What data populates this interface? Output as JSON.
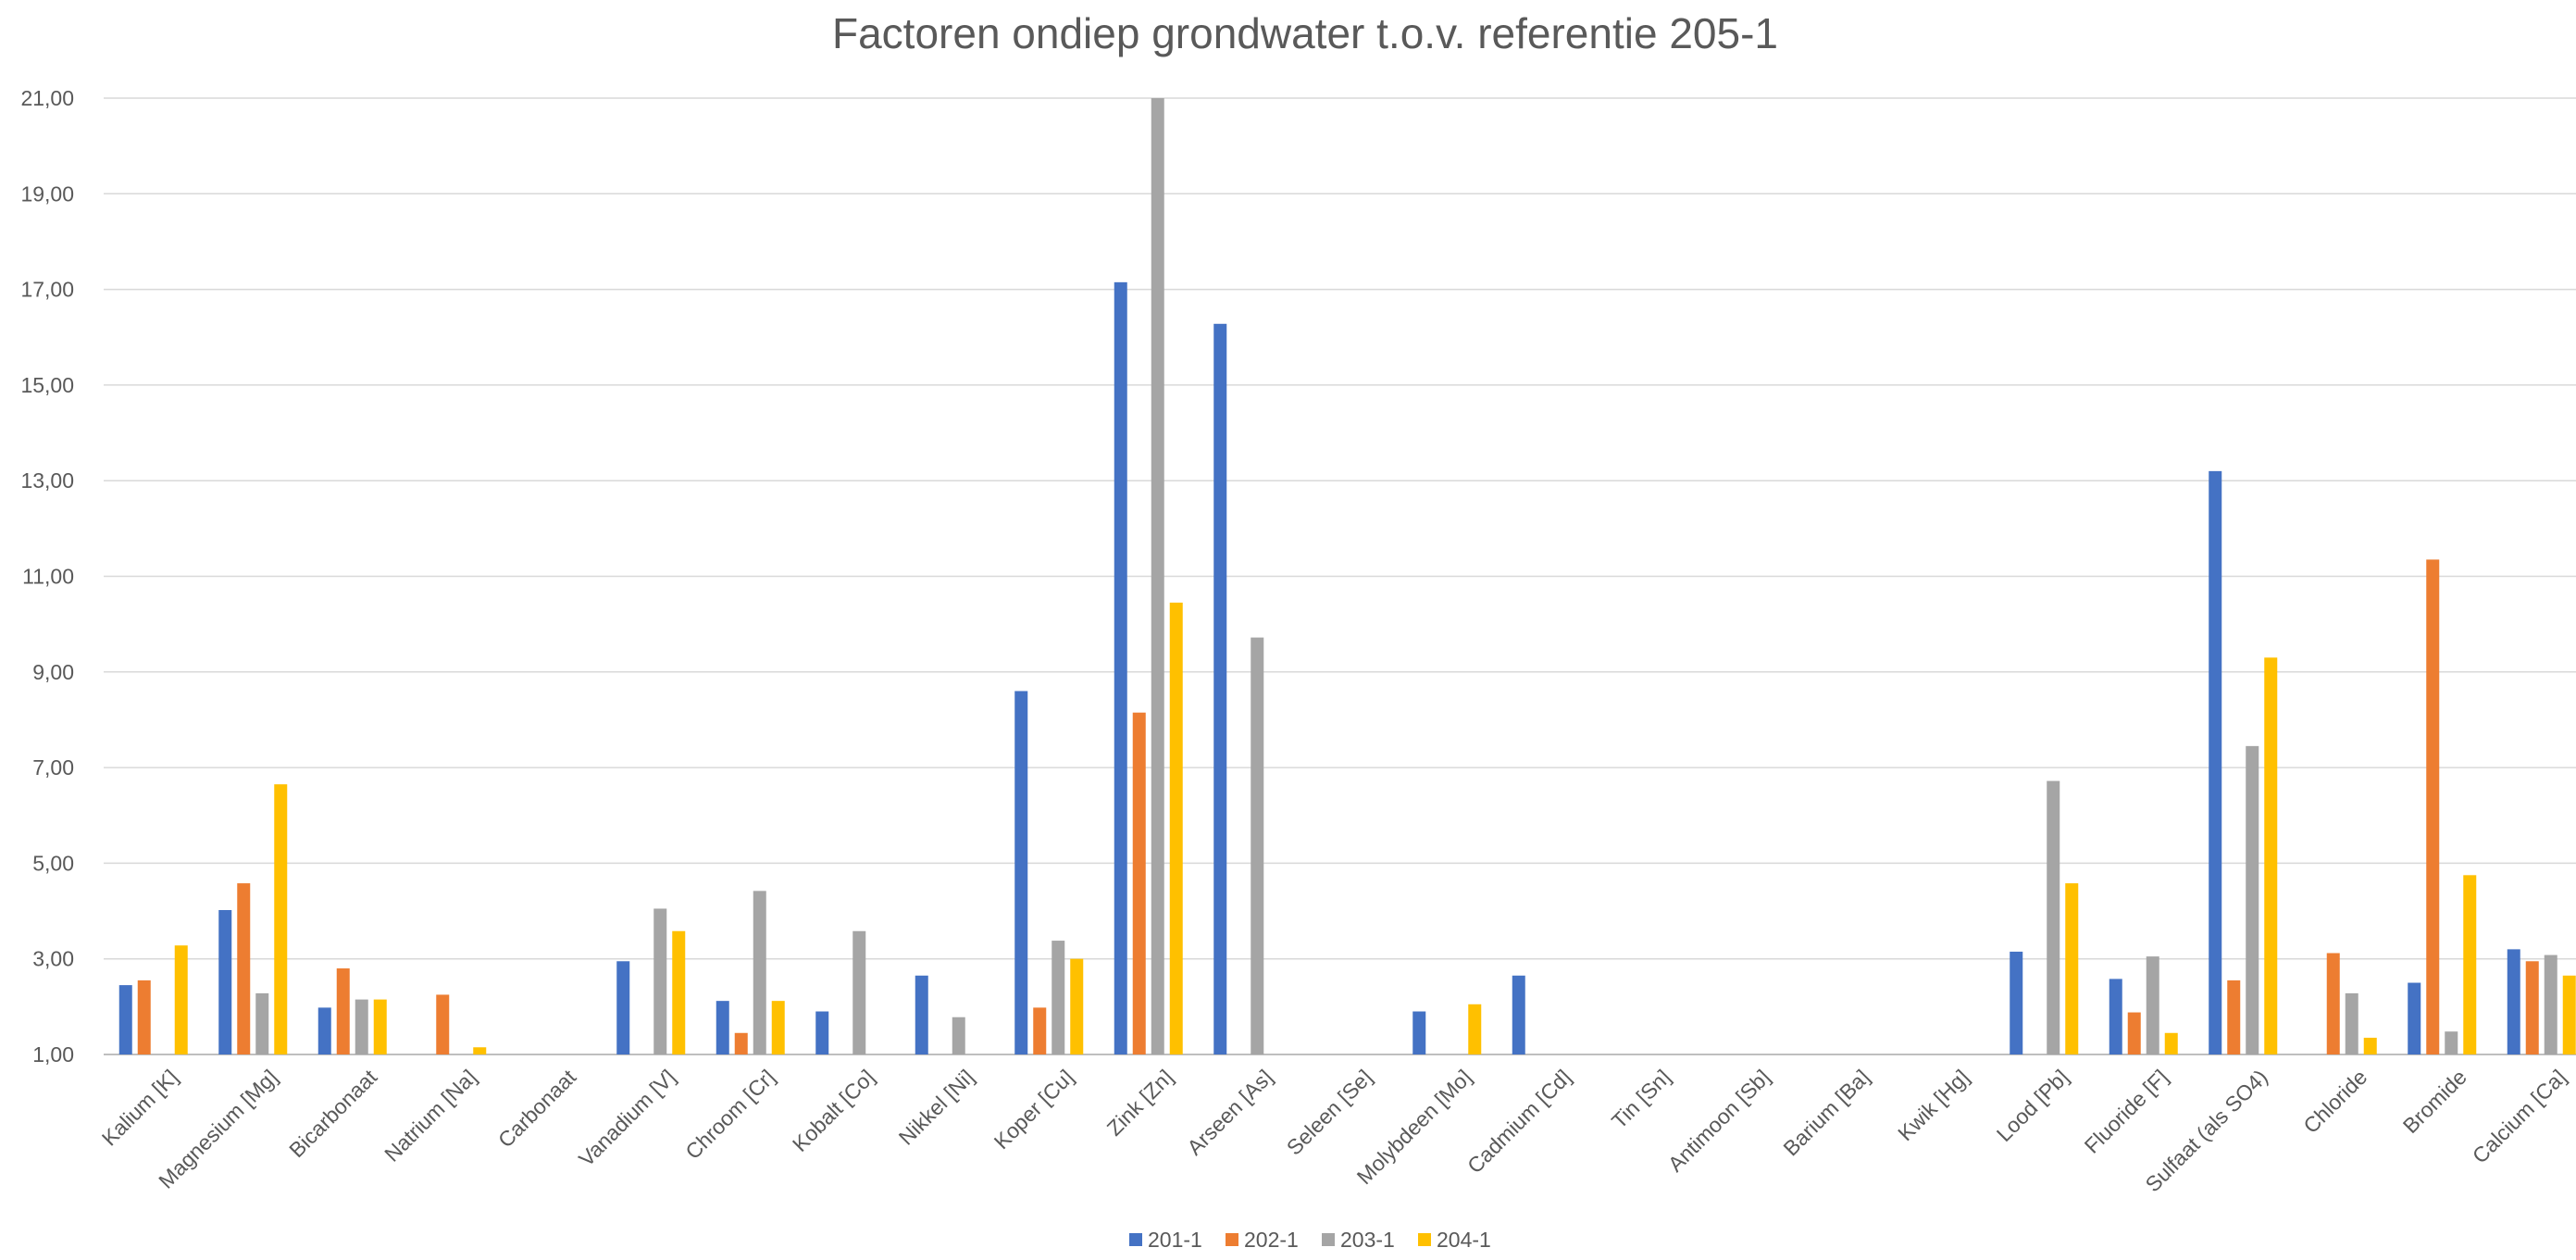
{
  "chart_data": {
    "type": "bar",
    "title": "Factoren ondiep grondwater t.o.v. referentie 205-1",
    "xlabel": "",
    "ylabel": "",
    "ylim": [
      1,
      21
    ],
    "yticks": [
      1,
      3,
      5,
      7,
      9,
      11,
      13,
      15,
      17,
      19,
      21
    ],
    "ytick_labels": [
      "1,00",
      "3,00",
      "5,00",
      "7,00",
      "9,00",
      "11,00",
      "13,00",
      "15,00",
      "17,00",
      "19,00",
      "21,00"
    ],
    "grid": true,
    "legend_position": "bottom",
    "categories": [
      "Kalium [K]",
      "Magnesium [Mg]",
      "Bicarbonaat",
      "Natrium [Na]",
      "Carbonaat",
      "Vanadium [V]",
      "Chroom [Cr]",
      "Kobalt [Co]",
      "Nikkel [Ni]",
      "Koper [Cu]",
      "Zink [Zn]",
      "Arseen [As]",
      "Seleen [Se]",
      "Molybdeen [Mo]",
      "Cadmium [Cd]",
      "Tin [Sn]",
      "Antimoon [Sb]",
      "Barium [Ba]",
      "Kwik [Hg]",
      "Lood [Pb]",
      "Fluoride [F]",
      "Sulfaat (als SO4)",
      "Chloride",
      "Bromide",
      "Calcium [Ca]"
    ],
    "series": [
      {
        "name": "201-1",
        "color": "#4472c4",
        "values": [
          2.45,
          4.02,
          1.98,
          null,
          null,
          2.95,
          2.12,
          1.9,
          2.65,
          8.6,
          17.15,
          16.28,
          null,
          1.9,
          2.65,
          null,
          null,
          null,
          null,
          3.15,
          2.58,
          13.2,
          null,
          2.5,
          3.2
        ]
      },
      {
        "name": "202-1",
        "color": "#ed7d31",
        "values": [
          2.55,
          4.58,
          2.8,
          2.25,
          null,
          null,
          1.45,
          null,
          null,
          1.98,
          8.15,
          null,
          null,
          null,
          null,
          null,
          null,
          null,
          null,
          null,
          1.88,
          2.55,
          3.12,
          11.35,
          2.95
        ]
      },
      {
        "name": "203-1",
        "color": "#a5a5a5",
        "values": [
          null,
          2.28,
          2.15,
          null,
          null,
          4.05,
          4.42,
          3.58,
          1.78,
          3.38,
          21.0,
          9.72,
          null,
          null,
          null,
          null,
          null,
          null,
          null,
          6.72,
          3.05,
          7.45,
          2.28,
          1.48,
          3.08
        ]
      },
      {
        "name": "204-1",
        "color": "#ffc000",
        "values": [
          3.28,
          6.65,
          2.15,
          1.15,
          null,
          3.58,
          2.12,
          null,
          null,
          3.0,
          10.45,
          null,
          null,
          2.05,
          null,
          null,
          null,
          null,
          null,
          4.58,
          1.45,
          9.3,
          1.35,
          4.75,
          2.65
        ]
      }
    ]
  }
}
